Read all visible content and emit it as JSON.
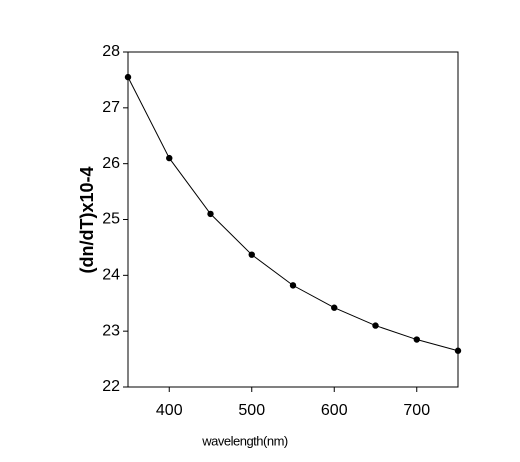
{
  "chart_data": {
    "type": "line",
    "x_label": "wavelength(nm)",
    "y_label": "(dn/dT)x10-4",
    "x": [
      350,
      400,
      450,
      500,
      550,
      600,
      650,
      700,
      750
    ],
    "series": [
      {
        "color": "#000000",
        "values": [
          27.55,
          26.1,
          25.1,
          24.37,
          23.82,
          23.42,
          23.1,
          22.85,
          22.65
        ]
      }
    ],
    "xlim": [
      350,
      750
    ],
    "xticks": [
      400,
      500,
      600,
      700
    ],
    "ylim": [
      22,
      28
    ],
    "yticks": [
      22,
      23,
      24,
      25,
      26,
      27,
      28
    ],
    "grid": false
  }
}
